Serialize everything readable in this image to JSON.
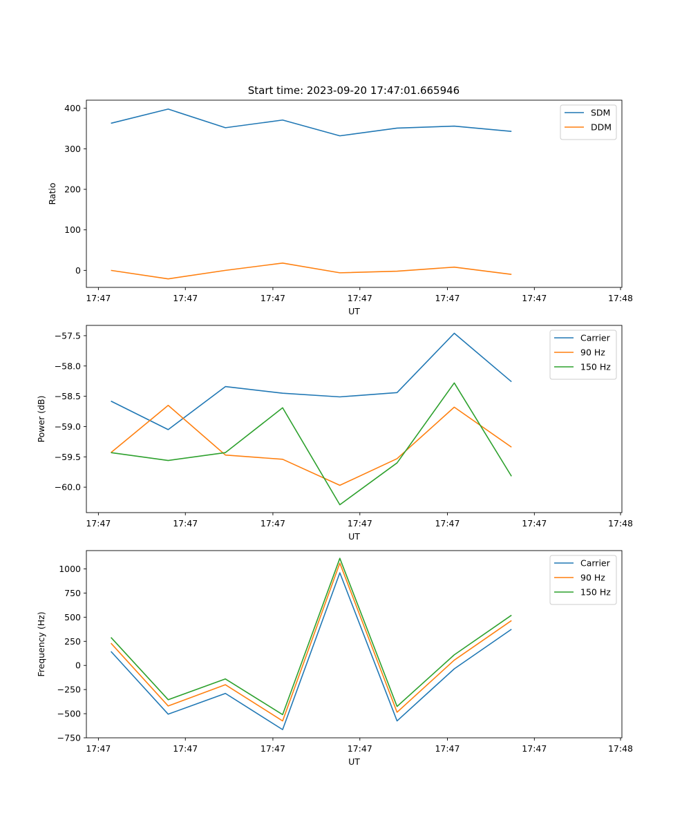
{
  "figure": {
    "title": "Start time: 2023-09-20 17:47:01.665946"
  },
  "chart_data": [
    {
      "type": "line",
      "xlabel": "UT",
      "ylabel": "Ratio",
      "x_tick_labels": [
        "17:47",
        "17:47",
        "17:47",
        "17:47",
        "17:47",
        "17:47",
        "17:48"
      ],
      "y_ticks": [
        0,
        100,
        200,
        300,
        400
      ],
      "ylim": [
        -42,
        420
      ],
      "x_index_range": [
        -0.43,
        8.93
      ],
      "legend_position": "top-right",
      "series": [
        {
          "name": "SDM",
          "color": "#1f77b4",
          "values": [
            363,
            398,
            352,
            371,
            332,
            351,
            356,
            343
          ]
        },
        {
          "name": "DDM",
          "color": "#ff7f0e",
          "values": [
            0,
            -21,
            0,
            18,
            -6,
            -2,
            8,
            -10
          ]
        }
      ]
    },
    {
      "type": "line",
      "xlabel": "UT",
      "ylabel": "Power (dB)",
      "x_tick_labels": [
        "17:47",
        "17:47",
        "17:47",
        "17:47",
        "17:47",
        "17:47",
        "17:48"
      ],
      "y_ticks": [
        -60.0,
        -59.5,
        -59.0,
        -58.5,
        -58.0,
        -57.5
      ],
      "y_tick_labels": [
        "−60.0",
        "−59.5",
        "−59.0",
        "−58.5",
        "−58.0",
        "−57.5"
      ],
      "ylim": [
        -60.42,
        -57.33
      ],
      "x_index_range": [
        -0.43,
        8.93
      ],
      "legend_position": "top-right",
      "series": [
        {
          "name": "Carrier",
          "color": "#1f77b4",
          "values": [
            -58.58,
            -59.05,
            -58.34,
            -58.45,
            -58.51,
            -58.44,
            -57.46,
            -58.26
          ]
        },
        {
          "name": "90 Hz",
          "color": "#ff7f0e",
          "values": [
            -59.43,
            -58.65,
            -59.47,
            -59.54,
            -59.97,
            -59.53,
            -58.68,
            -59.34
          ]
        },
        {
          "name": "150 Hz",
          "color": "#2ca02c",
          "values": [
            -59.43,
            -59.56,
            -59.43,
            -58.69,
            -60.29,
            -59.6,
            -58.28,
            -59.82
          ]
        }
      ]
    },
    {
      "type": "line",
      "xlabel": "UT",
      "ylabel": "Frequency (Hz)",
      "x_tick_labels": [
        "17:47",
        "17:47",
        "17:47",
        "17:47",
        "17:47",
        "17:47",
        "17:48"
      ],
      "y_ticks": [
        -750,
        -500,
        -250,
        0,
        250,
        500,
        750,
        1000
      ],
      "y_tick_labels": [
        "−750",
        "−500",
        "−250",
        "0",
        "250",
        "500",
        "750",
        "1000"
      ],
      "ylim": [
        -750,
        1190
      ],
      "x_index_range": [
        -0.43,
        8.93
      ],
      "legend_position": "top-right",
      "series": [
        {
          "name": "Carrier",
          "color": "#1f77b4",
          "values": [
            145,
            -505,
            -290,
            -665,
            960,
            -575,
            -35,
            375
          ]
        },
        {
          "name": "90 Hz",
          "color": "#ff7f0e",
          "values": [
            230,
            -420,
            -200,
            -575,
            1060,
            -485,
            55,
            465
          ]
        },
        {
          "name": "150 Hz",
          "color": "#2ca02c",
          "values": [
            290,
            -355,
            -140,
            -510,
            1110,
            -425,
            110,
            520
          ]
        }
      ]
    }
  ]
}
